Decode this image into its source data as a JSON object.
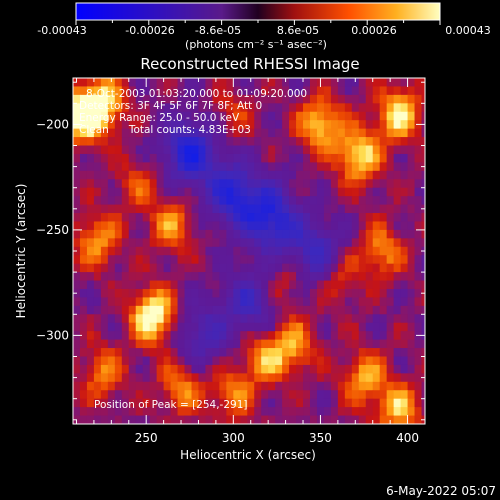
{
  "colorbar": {
    "tick_labels": [
      "-0.00043",
      "-0.00026",
      "-8.6e-05",
      "8.6e-05",
      "0.00026",
      "0.00043"
    ],
    "unit_label": "(photons cm⁻² s⁻¹ asec⁻²)"
  },
  "chart_data": {
    "type": "heatmap",
    "title": "Reconstructed RHESSI Image",
    "xlabel": "Heliocentric X (arcsec)",
    "ylabel": "Heliocentric Y (arcsec)",
    "xlim": [
      208,
      410
    ],
    "ylim": [
      -342,
      -178
    ],
    "x_ticks": [
      "250",
      "300",
      "350",
      "400"
    ],
    "y_ticks": [
      "-200",
      "-250",
      "-300"
    ],
    "x_tick_values": [
      250,
      300,
      350,
      400
    ],
    "y_tick_values": [
      -200,
      -250,
      -300
    ],
    "colormap": [
      "#0000ff",
      "#4b0fa0",
      "#5a1a8a",
      "#a01010",
      "#e03000",
      "#ff8000",
      "#ffc040",
      "#ffffb0"
    ],
    "info_lines": [
      "8-Oct-2003 01:03:20.000 to 01:09:20.000",
      "Detectors: 3F 4F 5F 6F 7F 8F; Att 0",
      "Energy Range: 25.0 - 50.0 keV",
      "Clean      Total counts: 4.83E+03"
    ],
    "peak_label": "Position of Peak = [254,-291]",
    "blobs": [
      {
        "x": 254,
        "y": -291,
        "v": 1.0
      },
      {
        "x": 213,
        "y": -196,
        "v": 0.95
      },
      {
        "x": 226,
        "y": -190,
        "v": 0.7
      },
      {
        "x": 222,
        "y": -255,
        "v": 0.6
      },
      {
        "x": 265,
        "y": -248,
        "v": 0.55
      },
      {
        "x": 225,
        "y": -318,
        "v": 0.5
      },
      {
        "x": 270,
        "y": -325,
        "v": 0.55
      },
      {
        "x": 300,
        "y": -328,
        "v": 0.5
      },
      {
        "x": 318,
        "y": -310,
        "v": 0.6
      },
      {
        "x": 335,
        "y": -305,
        "v": 0.55
      },
      {
        "x": 350,
        "y": -200,
        "v": 0.75
      },
      {
        "x": 372,
        "y": -215,
        "v": 0.8
      },
      {
        "x": 395,
        "y": -195,
        "v": 0.8
      },
      {
        "x": 385,
        "y": -260,
        "v": 0.55
      },
      {
        "x": 360,
        "y": -272,
        "v": 0.45
      },
      {
        "x": 375,
        "y": -320,
        "v": 0.6
      },
      {
        "x": 395,
        "y": -335,
        "v": 0.65
      },
      {
        "x": 245,
        "y": -228,
        "v": 0.35
      },
      {
        "x": 300,
        "y": -195,
        "v": 0.3
      },
      {
        "x": 330,
        "y": -275,
        "v": 0.35
      }
    ],
    "holes": [
      {
        "x": 275,
        "y": -213,
        "v": 0.9
      },
      {
        "x": 300,
        "y": -233,
        "v": 0.8
      },
      {
        "x": 322,
        "y": -245,
        "v": 0.85
      },
      {
        "x": 348,
        "y": -262,
        "v": 0.7
      },
      {
        "x": 310,
        "y": -285,
        "v": 0.6
      },
      {
        "x": 282,
        "y": -300,
        "v": 0.5
      }
    ]
  },
  "footer": {
    "timestamp": "6-May-2022 05:07"
  }
}
